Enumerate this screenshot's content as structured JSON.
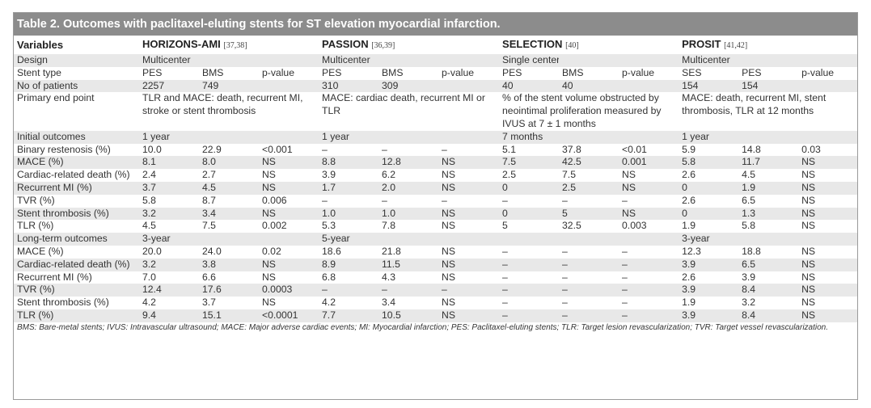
{
  "title": "Table 2. Outcomes with paclitaxel-eluting stents for ST elevation myocardial infarction.",
  "header": {
    "variables": "Variables",
    "studies": [
      {
        "name": "HORIZONS-AMI",
        "ref": "[37,38]"
      },
      {
        "name": "PASSION",
        "ref": "[36,39]"
      },
      {
        "name": "SELECTION",
        "ref": "[40]"
      },
      {
        "name": "PROSIT",
        "ref": "[41,42]"
      }
    ]
  },
  "rows": [
    {
      "label": "Design",
      "cells": [
        "Multicenter",
        "",
        "",
        "Multicenter",
        "",
        "",
        "Single center",
        "",
        "",
        "Multicenter",
        "",
        ""
      ]
    },
    {
      "label": "Stent type",
      "cells": [
        "PES",
        "BMS",
        "p-value",
        "PES",
        "BMS",
        "p-value",
        "PES",
        "BMS",
        "p-value",
        "SES",
        "PES",
        "p-value"
      ]
    },
    {
      "label": "No of patients",
      "cells": [
        "2257",
        "749",
        "",
        "310",
        "309",
        "",
        "40",
        "40",
        "",
        "154",
        "154",
        ""
      ]
    },
    {
      "label": "Primary end point",
      "spans": [
        "TLR and MACE: death, recurrent MI, stroke or stent thrombosis",
        "MACE: cardiac death, recurrent MI or TLR",
        "% of the stent volume obstructed by neointimal proliferation measured by IVUS at 7 ± 1 months",
        "MACE: death, recurrent MI, stent thrombosis, TLR at 12 months"
      ]
    },
    {
      "label": "Initial outcomes",
      "cells": [
        "1 year",
        "",
        "",
        "1 year",
        "",
        "",
        "7 months",
        "",
        "",
        "1 year",
        "",
        ""
      ]
    },
    {
      "label": "Binary restenosis (%)",
      "cells": [
        "10.0",
        "22.9",
        "<0.001",
        "–",
        "–",
        "–",
        "5.1",
        "37.8",
        "<0.01",
        "5.9",
        "14.8",
        "0.03"
      ]
    },
    {
      "label": "MACE (%)",
      "cells": [
        "8.1",
        "8.0",
        "NS",
        "8.8",
        "12.8",
        "NS",
        "7.5",
        "42.5",
        "0.001",
        "5.8",
        "11.7",
        "NS"
      ]
    },
    {
      "label": "Cardiac-related death (%)",
      "cells": [
        "2.4",
        "2.7",
        "NS",
        "3.9",
        "6.2",
        "NS",
        "2.5",
        "7.5",
        "NS",
        "2.6",
        "4.5",
        "NS"
      ]
    },
    {
      "label": "Recurrent MI (%)",
      "cells": [
        "3.7",
        "4.5",
        "NS",
        "1.7",
        "2.0",
        "NS",
        "0",
        "2.5",
        "NS",
        "0",
        "1.9",
        "NS"
      ]
    },
    {
      "label": "TVR (%)",
      "cells": [
        "5.8",
        "8.7",
        "0.006",
        "–",
        "–",
        "–",
        "–",
        "–",
        "–",
        "2.6",
        "6.5",
        "NS"
      ]
    },
    {
      "label": "Stent thrombosis (%)",
      "cells": [
        "3.2",
        "3.4",
        "NS",
        "1.0",
        "1.0",
        "NS",
        "0",
        "5",
        "NS",
        "0",
        "1.3",
        "NS"
      ]
    },
    {
      "label": "TLR (%)",
      "cells": [
        "4.5",
        "7.5",
        "0.002",
        "5.3",
        "7.8",
        "NS",
        "5",
        "32.5",
        "0.003",
        "1.9",
        "5.8",
        "NS"
      ]
    },
    {
      "label": "Long-term outcomes",
      "cells": [
        "3-year",
        "",
        "",
        "5-year",
        "",
        "",
        "",
        "",
        "",
        "3-year",
        "",
        ""
      ]
    },
    {
      "label": "MACE (%)",
      "cells": [
        "20.0",
        "24.0",
        "0.02",
        "18.6",
        "21.8",
        "NS",
        "–",
        "–",
        "–",
        "12.3",
        "18.8",
        "NS"
      ]
    },
    {
      "label": "Cardiac-related death (%)",
      "cells": [
        "3.2",
        "3.8",
        "NS",
        "8.9",
        "11.5",
        "NS",
        "–",
        "–",
        "–",
        "3.9",
        "6.5",
        "NS"
      ]
    },
    {
      "label": "Recurrent MI (%)",
      "cells": [
        "7.0",
        "6.6",
        "NS",
        "6.8",
        "4.3",
        "NS",
        "–",
        "–",
        "–",
        "2.6",
        "3.9",
        "NS"
      ]
    },
    {
      "label": "TVR (%)",
      "cells": [
        "12.4",
        "17.6",
        "0.0003",
        "–",
        "–",
        "–",
        "–",
        "–",
        "–",
        "3.9",
        "8.4",
        "NS"
      ]
    },
    {
      "label": "Stent thrombosis (%)",
      "cells": [
        "4.2",
        "3.7",
        "NS",
        "4.2",
        "3.4",
        "NS",
        "–",
        "–",
        "–",
        "1.9",
        "3.2",
        "NS"
      ]
    },
    {
      "label": "TLR (%)",
      "cells": [
        "9.4",
        "15.1",
        "<0.0001",
        "7.7",
        "10.5",
        "NS",
        "–",
        "–",
        "–",
        "3.9",
        "8.4",
        "NS"
      ]
    }
  ],
  "footnote": "BMS: Bare-metal stents; IVUS: Intravascular ultrasound; MACE: Major adverse cardiac events; MI: Myocardial infarction; PES: Paclitaxel-eluting stents; TLR: Target lesion revascularization; TVR: Target vessel revascularization.",
  "colors": {
    "title_bg": "#8c8c8c",
    "row_shade": "#e8e8e8",
    "border": "#9a9a9a"
  }
}
